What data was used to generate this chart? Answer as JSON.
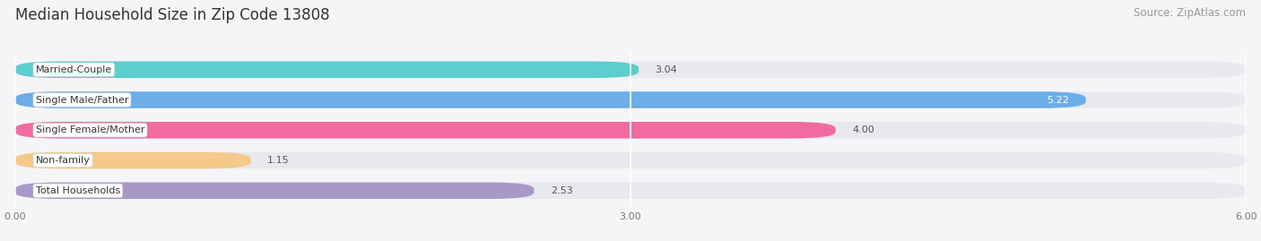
{
  "title": "Median Household Size in Zip Code 13808",
  "source": "Source: ZipAtlas.com",
  "categories": [
    "Married-Couple",
    "Single Male/Father",
    "Single Female/Mother",
    "Non-family",
    "Total Households"
  ],
  "values": [
    3.04,
    5.22,
    4.0,
    1.15,
    2.53
  ],
  "bar_colors": [
    "#5BCECE",
    "#6BAEE8",
    "#F06CA0",
    "#F5C98A",
    "#A898C8"
  ],
  "xlim": [
    0,
    6.0
  ],
  "xticks": [
    0.0,
    3.0,
    6.0
  ],
  "xtick_labels": [
    "0.00",
    "3.00",
    "6.00"
  ],
  "background_color": "#f5f5f8",
  "bar_bg_color": "#e8e8ef",
  "title_fontsize": 12,
  "source_fontsize": 8.5,
  "label_fontsize": 8,
  "value_fontsize": 8
}
